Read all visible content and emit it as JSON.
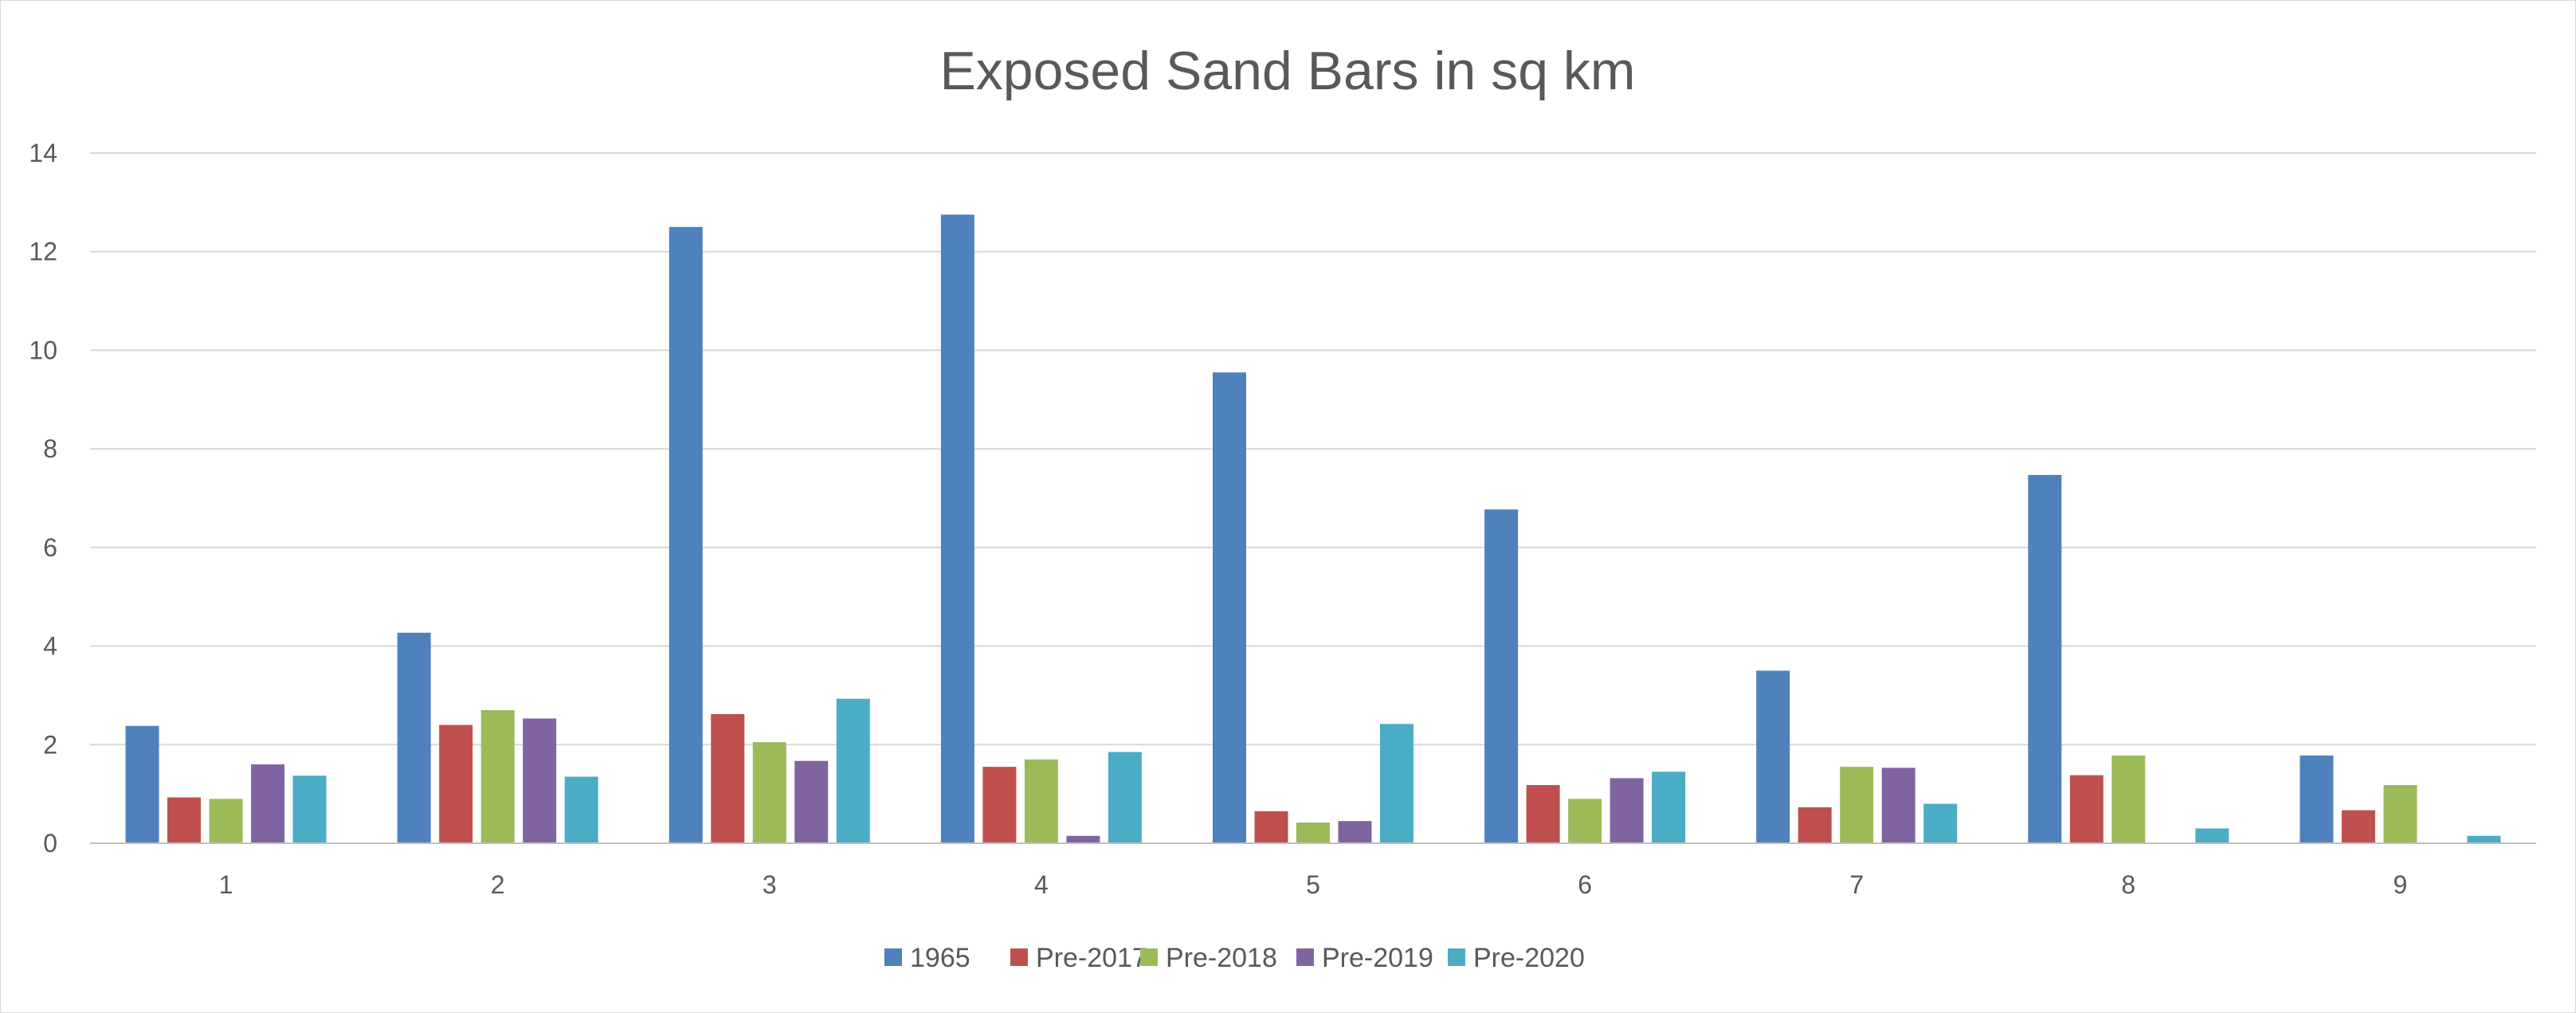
{
  "chart_data": {
    "type": "bar",
    "title": "Exposed Sand Bars in sq km",
    "xlabel": "",
    "ylabel": "",
    "categories": [
      "1",
      "2",
      "3",
      "4",
      "5",
      "6",
      "7",
      "8",
      "9"
    ],
    "ylim": [
      0,
      14
    ],
    "yticks": [
      0,
      2,
      4,
      6,
      8,
      10,
      12,
      14
    ],
    "grid": true,
    "legend_position": "bottom",
    "series": [
      {
        "name": "1965",
        "color": "#4F81BD",
        "values": [
          2.38,
          4.27,
          12.5,
          12.75,
          9.55,
          6.77,
          3.5,
          7.47,
          1.78
        ]
      },
      {
        "name": "Pre-2017",
        "color": "#C0504D",
        "values": [
          0.93,
          2.4,
          2.62,
          1.55,
          0.65,
          1.18,
          0.73,
          1.38,
          0.67
        ]
      },
      {
        "name": "Pre-2018",
        "color": "#9BBB59",
        "values": [
          0.9,
          2.7,
          2.05,
          1.7,
          0.42,
          0.9,
          1.55,
          1.78,
          1.18
        ]
      },
      {
        "name": "Pre-2019",
        "color": "#8064A2",
        "values": [
          1.6,
          2.53,
          1.67,
          0.15,
          0.45,
          1.32,
          1.53,
          0,
          0
        ]
      },
      {
        "name": "Pre-2020",
        "color": "#4BACC6",
        "values": [
          1.37,
          1.35,
          2.93,
          1.85,
          2.42,
          1.45,
          0.8,
          0.3,
          0.15
        ]
      }
    ]
  }
}
